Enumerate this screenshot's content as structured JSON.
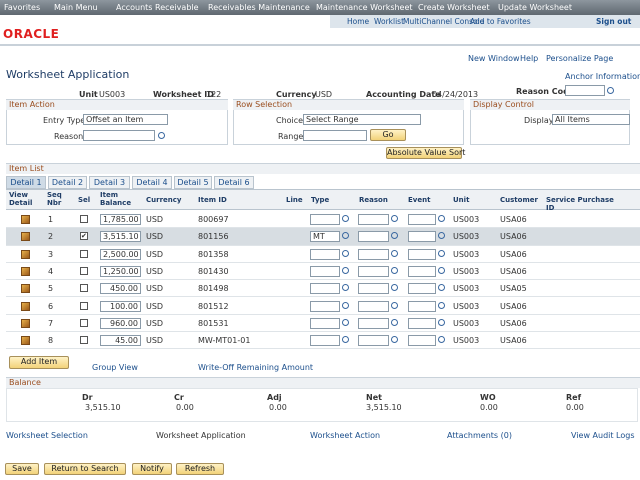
{
  "nav": [
    "Favorites",
    "Main Menu",
    "Accounts Receivable",
    "Receivables Maintenance",
    "Maintenance Worksheet",
    "Create Worksheet",
    "Update Worksheet"
  ],
  "header_links": [
    "Home",
    "Worklist",
    "MultiChannel Console",
    "Add to Favorites",
    "Sign out"
  ],
  "logo": "ORACLE",
  "page_links": [
    "New Window",
    "Help",
    "Personalize Page"
  ],
  "title": "Worksheet Application",
  "anchor": "Anchor Information",
  "info": [
    {
      "label": "Unit",
      "value": "US003"
    },
    {
      "label": "Worksheet ID",
      "value": "122"
    },
    {
      "label": "Currency",
      "value": "USD"
    },
    {
      "label": "Accounting Date",
      "value": "04/24/2013"
    }
  ],
  "reason_code": "Reason Code",
  "item_action": {
    "title": "Item Action",
    "entry_type": "Entry Type",
    "entry_value": "Offset an Item",
    "reason": "Reason"
  },
  "row_selection": {
    "title": "Row Selection",
    "choice": "Choice",
    "choice_value": "Select Range",
    "range": "Range",
    "go": "Go"
  },
  "display_control": {
    "title": "Display Control",
    "display": "Display",
    "display_value": "All Items"
  },
  "sort_button": "Absolute Value Sort",
  "item_list": "Item List",
  "tabs": [
    "Detail 1",
    "Detail 2",
    "Detail 3",
    "Detail 4",
    "Detail 5",
    "Detail 6"
  ],
  "columns": [
    "View Detail",
    "Seq Nbr",
    "Sel",
    "Item Balance",
    "Currency",
    "Item ID",
    "Line",
    "Type",
    "Reason",
    "Event",
    "Unit",
    "Customer",
    "Service Purchase ID"
  ],
  "rows": [
    {
      "seq": "1",
      "checked": false,
      "balance": "1,785.00",
      "currency": "USD",
      "item_id": "800697",
      "type": "",
      "unit": "US003",
      "customer": "USA06"
    },
    {
      "seq": "2",
      "checked": true,
      "balance": "3,515.10",
      "currency": "USD",
      "item_id": "801156",
      "type": "MT",
      "unit": "US003",
      "customer": "USA06"
    },
    {
      "seq": "3",
      "checked": false,
      "balance": "2,500.00",
      "currency": "USD",
      "item_id": "801358",
      "type": "",
      "unit": "US003",
      "customer": "USA06"
    },
    {
      "seq": "4",
      "checked": false,
      "balance": "1,250.00",
      "currency": "USD",
      "item_id": "801430",
      "type": "",
      "unit": "US003",
      "customer": "USA06"
    },
    {
      "seq": "5",
      "checked": false,
      "balance": "450.00",
      "currency": "USD",
      "item_id": "801498",
      "type": "",
      "unit": "US003",
      "customer": "USA05"
    },
    {
      "seq": "6",
      "checked": false,
      "balance": "100.00",
      "currency": "USD",
      "item_id": "801512",
      "type": "",
      "unit": "US003",
      "customer": "USA06"
    },
    {
      "seq": "7",
      "checked": false,
      "balance": "960.00",
      "currency": "USD",
      "item_id": "801531",
      "type": "",
      "unit": "US003",
      "customer": "USA06"
    },
    {
      "seq": "8",
      "checked": false,
      "balance": "45.00",
      "currency": "USD",
      "item_id": "MW-MT01-01",
      "type": "",
      "unit": "US003",
      "customer": "USA06"
    }
  ],
  "table_actions": [
    "Add Item",
    "Group View",
    "Write-Off Remaining Amount"
  ],
  "balance": {
    "title": "Balance",
    "labels": [
      "Dr",
      "Cr",
      "Adj",
      "Net",
      "WO",
      "Ref"
    ],
    "values": [
      "3,515.10",
      "0.00",
      "0.00",
      "3,515.10",
      "0.00",
      "0.00"
    ]
  },
  "footer_links": [
    "Worksheet Selection",
    "Worksheet Application",
    "Worksheet Action",
    "Attachments (0)",
    "View Audit Logs"
  ],
  "buttons": [
    "Save",
    "Return to Search",
    "Notify",
    "Refresh"
  ]
}
